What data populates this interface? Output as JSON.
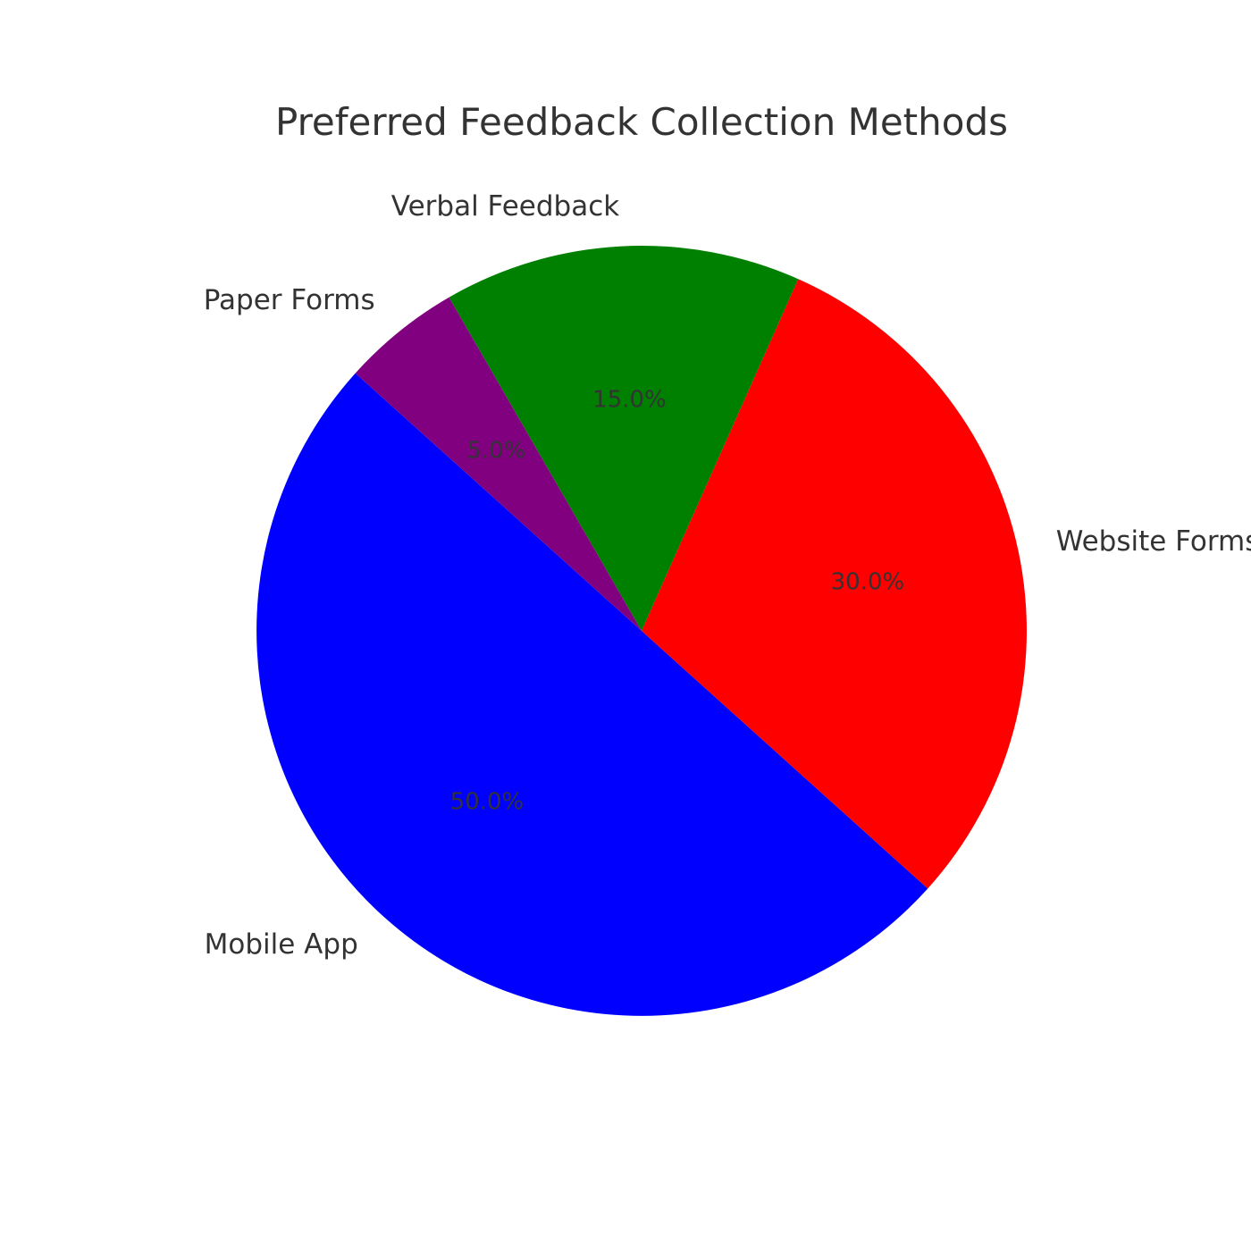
{
  "chart_data": {
    "type": "pie",
    "title": "Preferred Feedback Collection Methods",
    "start_angle_deg": 138,
    "direction": "counterclockwise",
    "slices": [
      {
        "label": "Mobile App",
        "value": 50,
        "pct_text": "50.0%",
        "color": "#0000ff"
      },
      {
        "label": "Website Forms",
        "value": 30,
        "pct_text": "30.0%",
        "color": "#ff0000"
      },
      {
        "label": "Verbal Feedback",
        "value": 15,
        "pct_text": "15.0%",
        "color": "#008000"
      },
      {
        "label": "Paper Forms",
        "value": 5,
        "pct_text": "5.0%",
        "color": "#800080"
      }
    ]
  }
}
